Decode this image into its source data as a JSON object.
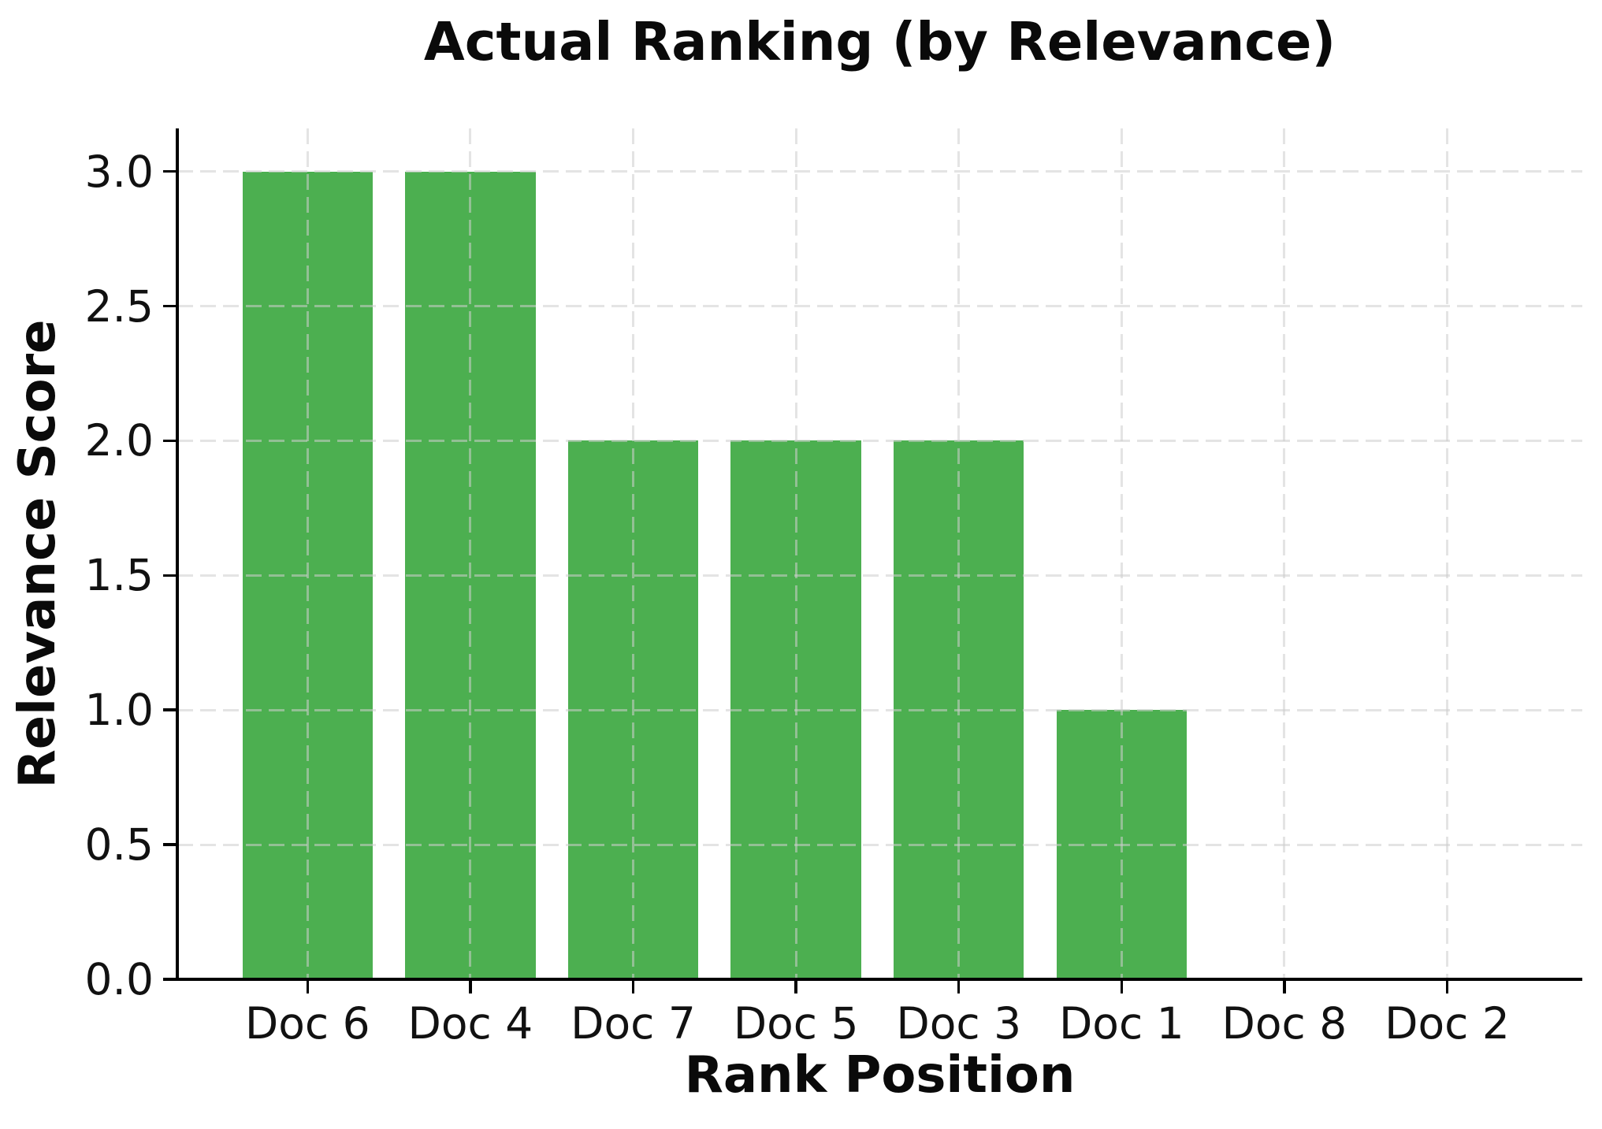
{
  "chart_data": {
    "type": "bar",
    "title": "Actual Ranking (by Relevance)",
    "xlabel": "Rank Position",
    "ylabel": "Relevance Score",
    "categories": [
      "Doc 6",
      "Doc 4",
      "Doc 7",
      "Doc 5",
      "Doc 3",
      "Doc 1",
      "Doc 8",
      "Doc 2"
    ],
    "values": [
      3,
      3,
      2,
      2,
      2,
      1,
      0,
      0
    ],
    "ylim": [
      0,
      3.16
    ],
    "yticks": [
      0,
      0.5,
      1,
      1.5,
      2,
      2.5,
      3
    ],
    "ytick_labels": [
      "0.0",
      "0.5",
      "1.0",
      "1.5",
      "2.0",
      "2.5",
      "3.0"
    ],
    "bar_color": "#4caf50",
    "grid": "dashed light-gray gridlines on both axes, drawn above bars",
    "legend": "none"
  }
}
